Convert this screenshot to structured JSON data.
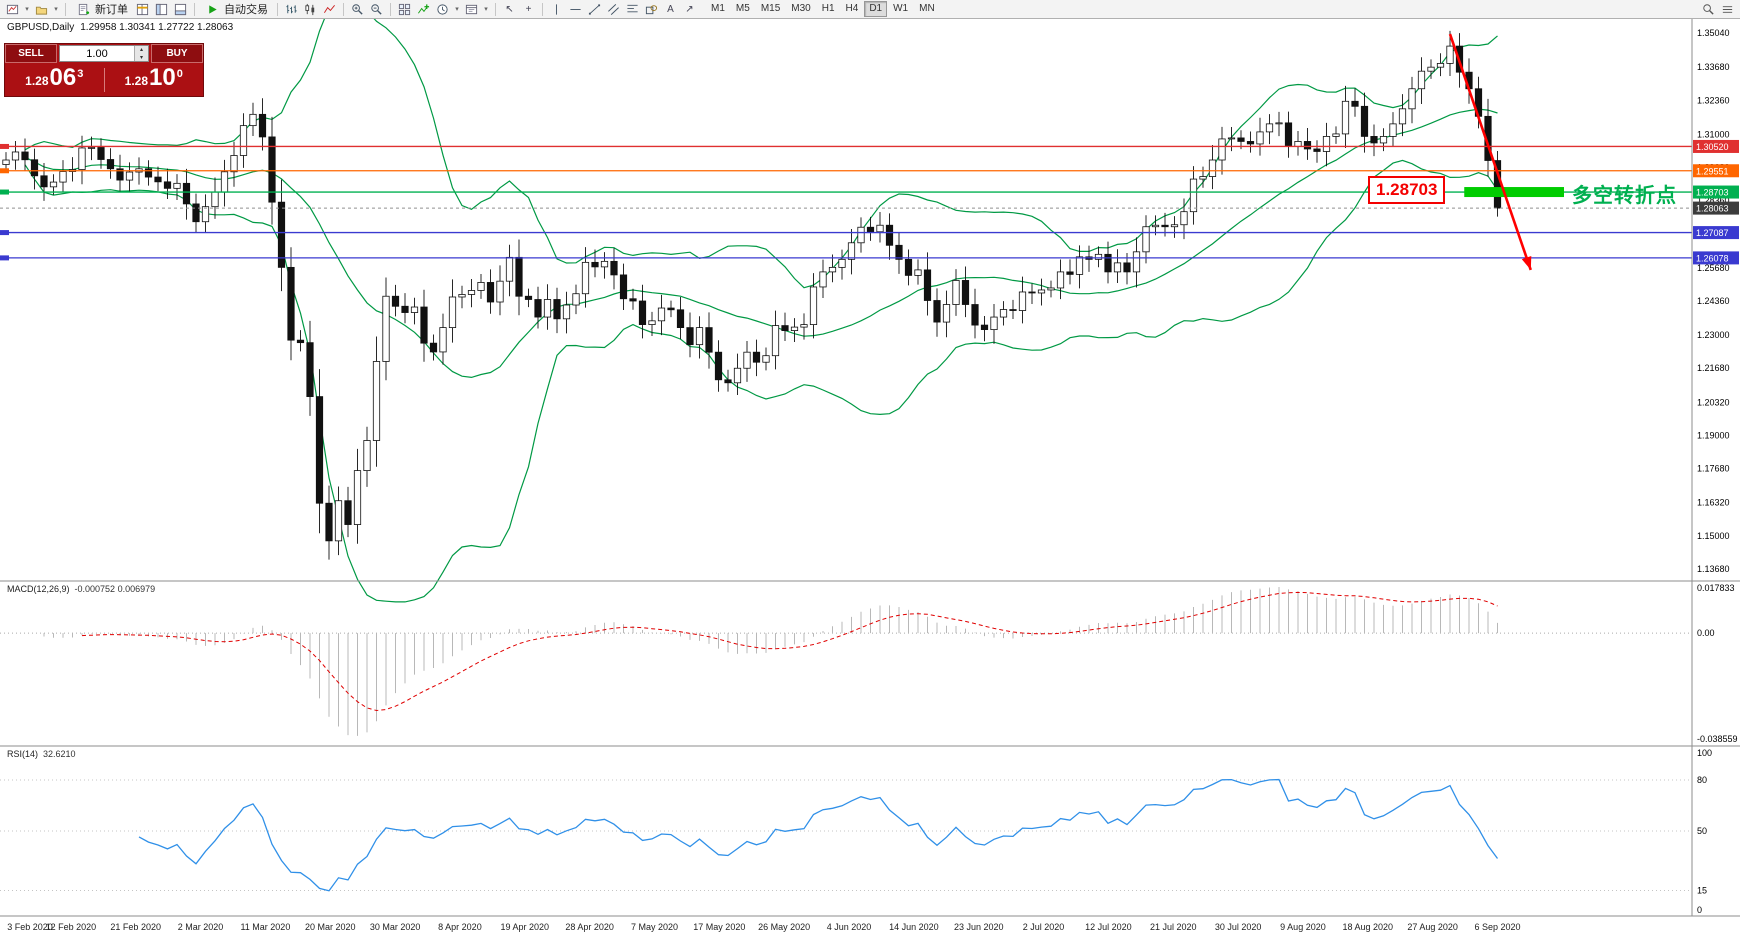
{
  "toolbar": {
    "new_order_label": "新订单",
    "autotrading_label": "自动交易",
    "timeframes": [
      "M1",
      "M5",
      "M15",
      "M30",
      "H1",
      "H4",
      "D1",
      "W1",
      "MN"
    ],
    "active_timeframe": "D1"
  },
  "icons": {
    "dropdown": "▾",
    "cursor": "↖",
    "crosshair": "+",
    "text_tool": "A",
    "arrow_tool": "↗",
    "spin_up": "▴",
    "spin_down": "▾"
  },
  "chart": {
    "symbol_title": "GBPUSD,Daily",
    "ohlc_text": "1.29958 1.30341 1.27722 1.28063"
  },
  "trade_panel": {
    "sell_label": "SELL",
    "buy_label": "BUY",
    "volume": "1.00",
    "sell_price_base": "1.28",
    "sell_price_big": "06",
    "sell_price_sup": "3",
    "buy_price_base": "1.28",
    "buy_price_big": "10",
    "buy_price_sup": "0"
  },
  "annotation": {
    "price_label": "1.28703",
    "text": "多空转折点",
    "text_color": "#00b050",
    "bar_color": "#00cc00",
    "arrow_color": "#ff0000"
  },
  "chart_data": {
    "type": "candlestick",
    "symbol": "GBPUSD",
    "period": "Daily",
    "price_domain": [
      1.132,
      1.356
    ],
    "first_open": 1.298,
    "closes": [
      1.2998,
      1.303,
      1.2999,
      1.2935,
      1.2891,
      1.291,
      1.2952,
      1.296,
      1.3046,
      1.3048,
      1.3,
      1.2963,
      1.2918,
      1.295,
      1.2963,
      1.293,
      1.2911,
      1.2885,
      1.2905,
      1.2823,
      1.2752,
      1.2812,
      1.287,
      1.2951,
      1.3016,
      1.3135,
      1.318,
      1.309,
      1.283,
      1.257,
      1.228,
      1.227,
      1.2055,
      1.163,
      1.148,
      1.164,
      1.1545,
      1.176,
      1.188,
      1.2195,
      1.2455,
      1.2415,
      1.239,
      1.2412,
      1.2268,
      1.2233,
      1.233,
      1.2452,
      1.2462,
      1.2478,
      1.251,
      1.2432,
      1.2515,
      1.261,
      1.2455,
      1.2442,
      1.2372,
      1.2442,
      1.2365,
      1.242,
      1.2465,
      1.259,
      1.2572,
      1.2594,
      1.254,
      1.2445,
      1.2436,
      1.2342,
      1.2357,
      1.2408,
      1.2401,
      1.233,
      1.2262,
      1.233,
      1.2232,
      1.2122,
      1.211,
      1.2168,
      1.2232,
      1.2192,
      1.2218,
      1.2338,
      1.2318,
      1.2332,
      1.2342,
      1.2492,
      1.2552,
      1.257,
      1.2602,
      1.2668,
      1.273,
      1.2712,
      1.2738,
      1.2658,
      1.2602,
      1.2538,
      1.256,
      1.2438,
      1.2352,
      1.2422,
      1.2518,
      1.2422,
      1.234,
      1.2322,
      1.2372,
      1.2402,
      1.2398,
      1.2472,
      1.2468,
      1.248,
      1.2488,
      1.2552,
      1.2542,
      1.2612,
      1.2602,
      1.2622,
      1.2552,
      1.2588,
      1.2552,
      1.2632,
      1.2732,
      1.2738,
      1.2732,
      1.274,
      1.2792,
      1.2922,
      1.2932,
      1.2998,
      1.3082,
      1.3086,
      1.3072,
      1.3062,
      1.311,
      1.3142,
      1.3146,
      1.3052,
      1.3072,
      1.3042,
      1.3032,
      1.3092,
      1.3102,
      1.3232,
      1.3212,
      1.3092,
      1.3066,
      1.3092,
      1.3142,
      1.3202,
      1.3282,
      1.3352,
      1.3368,
      1.3383,
      1.3452,
      1.3348,
      1.3282,
      1.3172,
      1.2996,
      1.28063
    ],
    "last_ohlc": {
      "open": 1.29958,
      "high": 1.30341,
      "low": 1.27722,
      "close": 1.28063
    },
    "x_labels": [
      "3 Feb 2020",
      "12 Feb 2020",
      "21 Feb 2020",
      "2 Mar 2020",
      "11 Mar 2020",
      "20 Mar 2020",
      "30 Mar 2020",
      "8 Apr 2020",
      "19 Apr 2020",
      "28 Apr 2020",
      "7 May 2020",
      "17 May 2020",
      "26 May 2020",
      "4 Jun 2020",
      "14 Jun 2020",
      "23 Jun 2020",
      "2 Jul 2020",
      "12 Jul 2020",
      "21 Jul 2020",
      "30 Jul 2020",
      "9 Aug 2020",
      "18 Aug 2020",
      "27 Aug 2020",
      "6 Sep 2020"
    ],
    "y_labels": [
      "1.35040",
      "1.33680",
      "1.32360",
      "1.31000",
      "1.29680",
      "1.28360",
      "1.27040",
      "1.25680",
      "1.24360",
      "1.23000",
      "1.21680",
      "1.20320",
      "1.19000",
      "1.17680",
      "1.16320",
      "1.15000",
      "1.13680"
    ],
    "hlines": [
      {
        "price": 1.3052,
        "label": "1.30520",
        "color": "#e03030"
      },
      {
        "price": 1.29551,
        "label": "1.29551",
        "color": "#ff6600"
      },
      {
        "price": 1.28703,
        "label": "1.28703",
        "color": "#00b050"
      },
      {
        "price": 1.27087,
        "label": "1.27087",
        "color": "#3a3ad0"
      },
      {
        "price": 1.26078,
        "label": "1.26078",
        "color": "#3a3ad0"
      }
    ],
    "bid": {
      "price": 1.28063,
      "label": "1.28063",
      "color": "#3c3c3c"
    },
    "highlight_bar": {
      "price": 1.28703,
      "from_candle": 153.5,
      "to_candle": 164,
      "color": "#00cc00"
    },
    "trend_arrow": {
      "from_candle": 152,
      "from_price": 1.35,
      "to_candle": 160.5,
      "to_price": 1.256,
      "color": "#ff0000"
    },
    "indicators": {
      "bollinger": {
        "period": 20,
        "deviation": 2,
        "color": "#009944"
      },
      "macd": {
        "label": "MACD(12,26,9)",
        "values_text": "-0.000752 0.006979",
        "domain": [
          -0.038559,
          0.017833
        ],
        "scale_labels": [
          "0.017833",
          "0.00",
          "-0.038559"
        ],
        "histogram_color": "#b8b8b8",
        "signal_color": "#e00000"
      },
      "rsi": {
        "label": "RSI(14)",
        "value_text": "32.6210",
        "domain": [
          0,
          100
        ],
        "levels": [
          80,
          50,
          15
        ],
        "scale_labels": [
          "100",
          "80",
          "50",
          "15",
          "0"
        ],
        "color": "#3090e8"
      }
    }
  }
}
